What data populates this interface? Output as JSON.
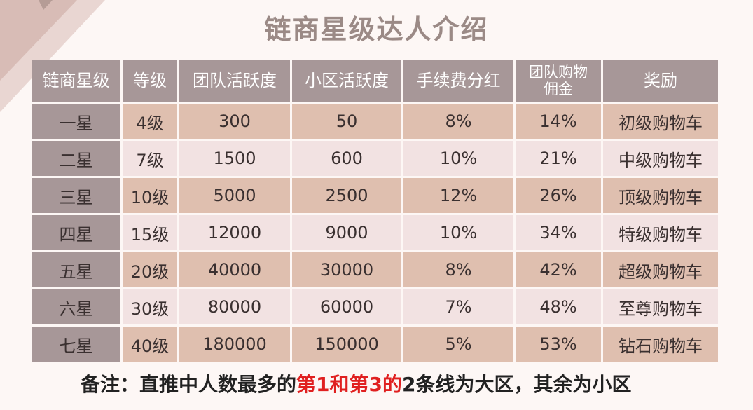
{
  "title": "链商星级达人介绍",
  "table": {
    "headers": [
      "链商星级",
      "等级",
      "团队活跃度",
      "小区活跃度",
      "手续费分红",
      "团队购物佣金",
      "奖励"
    ],
    "rows": [
      [
        "一星",
        "4级",
        "300",
        "50",
        "8%",
        "14%",
        "初级购物车"
      ],
      [
        "二星",
        "7级",
        "1500",
        "600",
        "10%",
        "21%",
        "中级购物车"
      ],
      [
        "三星",
        "10级",
        "5000",
        "2500",
        "12%",
        "26%",
        "顶级购物车"
      ],
      [
        "四星",
        "15级",
        "12000",
        "9000",
        "10%",
        "34%",
        "特级购物车"
      ],
      [
        "五星",
        "20级",
        "40000",
        "30000",
        "8%",
        "42%",
        "超级购物车"
      ],
      [
        "六星",
        "30级",
        "80000",
        "60000",
        "7%",
        "48%",
        "至尊购物车"
      ],
      [
        "七星",
        "40级",
        "180000",
        "150000",
        "5%",
        "53%",
        "钻石购物车"
      ]
    ]
  },
  "note": {
    "prefix": "备注：直推中人数最多的",
    "highlight": "第1和第3的",
    "suffix": "2条线为大区，其余为小区"
  },
  "colors": {
    "header_bg": "#a79798",
    "row_odd": "#dfbfaf",
    "row_even": "#f2e2e2",
    "highlight": "#e02020"
  }
}
